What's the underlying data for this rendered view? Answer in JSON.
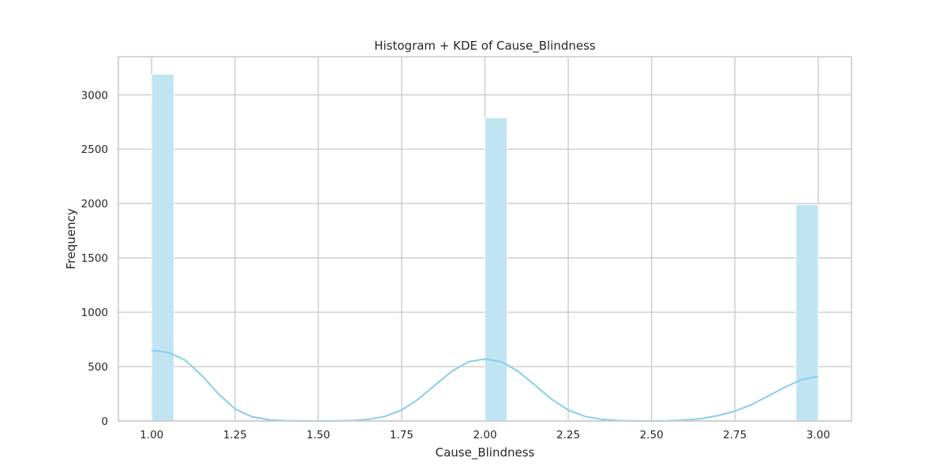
{
  "chart_data": {
    "type": "bar",
    "title": "Histogram + KDE of Cause_Blindness",
    "xlabel": "Cause_Blindness",
    "ylabel": "Frequency",
    "xlim": [
      0.9,
      3.1
    ],
    "ylim": [
      0,
      3350
    ],
    "grid": true,
    "x_ticks": [
      1.0,
      1.25,
      1.5,
      1.75,
      2.0,
      2.25,
      2.5,
      2.75,
      3.0
    ],
    "x_tick_labels": [
      "1.00",
      "1.25",
      "1.50",
      "1.75",
      "2.00",
      "2.25",
      "2.50",
      "2.75",
      "3.00"
    ],
    "y_ticks": [
      0,
      500,
      1000,
      1500,
      2000,
      2500,
      3000
    ],
    "y_tick_labels": [
      "0",
      "500",
      "1000",
      "1500",
      "2000",
      "2500",
      "3000"
    ],
    "histogram": {
      "bins": 30,
      "bin_range": [
        1.0,
        3.0
      ],
      "bars": [
        {
          "x0": 1.0,
          "x1": 1.0667,
          "value": 3190
        },
        {
          "x0": 2.0,
          "x1": 2.0667,
          "value": 2790
        },
        {
          "x0": 2.9333,
          "x1": 3.0,
          "value": 1990
        }
      ],
      "color": "#c1e4f3"
    },
    "kde": {
      "x": [
        1.0,
        1.05,
        1.1,
        1.15,
        1.2,
        1.25,
        1.3,
        1.35,
        1.4,
        1.45,
        1.5,
        1.55,
        1.6,
        1.65,
        1.7,
        1.75,
        1.8,
        1.85,
        1.9,
        1.95,
        2.0,
        2.05,
        2.1,
        2.15,
        2.2,
        2.25,
        2.3,
        2.35,
        2.4,
        2.45,
        2.5,
        2.55,
        2.6,
        2.65,
        2.7,
        2.75,
        2.8,
        2.85,
        2.9,
        2.95,
        3.0
      ],
      "y": [
        650,
        630,
        560,
        420,
        250,
        110,
        40,
        12,
        3,
        1,
        0,
        1,
        4,
        15,
        42,
        100,
        200,
        330,
        455,
        545,
        570,
        545,
        455,
        330,
        200,
        100,
        42,
        15,
        4,
        1,
        0,
        2,
        8,
        22,
        50,
        90,
        150,
        230,
        310,
        380,
        410
      ],
      "color": "#87ceeb"
    }
  }
}
